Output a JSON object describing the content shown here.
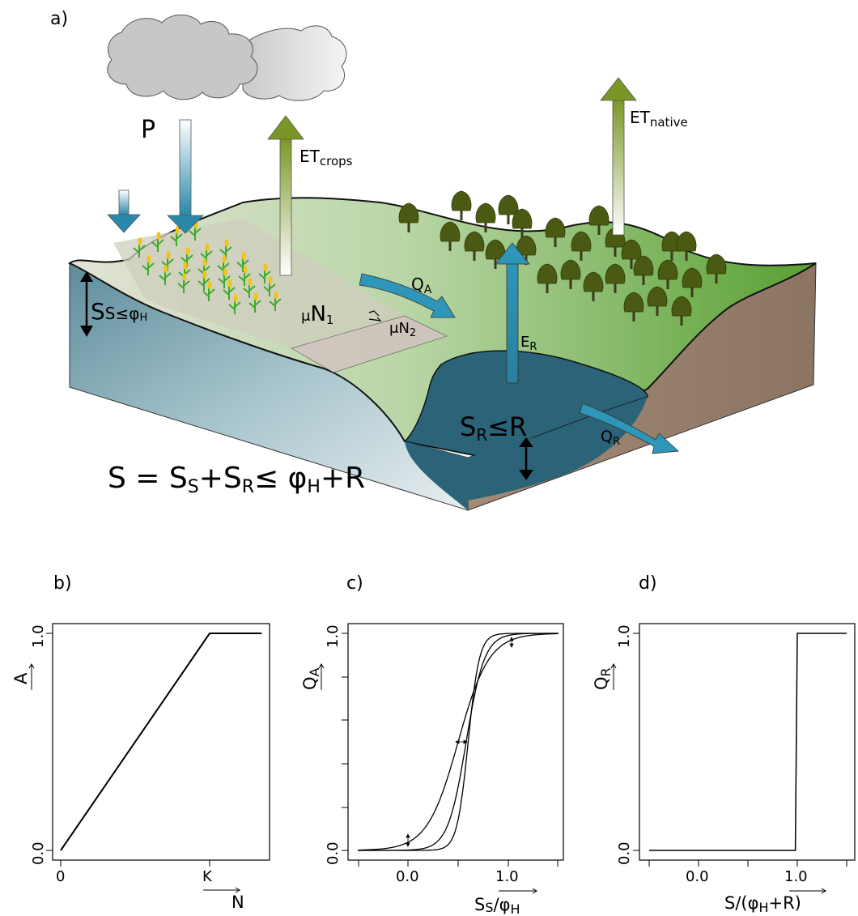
{
  "panel_a": {
    "label": "a)",
    "precip": "P",
    "et_crops_main": "ET",
    "et_crops_sub": "crops",
    "et_native_main": "ET",
    "et_native_sub": "native",
    "qa_main": "Q",
    "qa_sub": "A",
    "qr_main": "Q",
    "qr_sub": "R",
    "er_main": "E",
    "er_sub": "R",
    "mun1_mu": "μ",
    "mun1_main": "N",
    "mun1_sub": "1",
    "mun2_mu": "μ",
    "mun2_main": "N",
    "mun2_sub": "2",
    "ss_main": "S",
    "ss_sub": "S",
    "ss_rel": "≤",
    "ss_phi": "φ",
    "ss_phi_sub": "H",
    "sr_main": "S",
    "sr_sub": "R",
    "sr_rel": "≤R",
    "eq_s": "S = S",
    "eq_s_sub": "S",
    "eq_plus": "+S",
    "eq_r_sub": "R",
    "eq_rel": "≤ φ",
    "eq_h_sub": "H",
    "eq_tail": "+R",
    "colors": {
      "water": "#2b6478",
      "soil": "#8d7866",
      "field": "#c9c5b3",
      "forest": "#5ea236",
      "arrow_blue": "#2d8fb0",
      "arrow_green": "#7f9a2c"
    }
  },
  "chart_data": [
    {
      "type": "line",
      "panel": "b)",
      "xlabel": "N",
      "ylabel": "A",
      "x_ticks": [
        "0",
        "K"
      ],
      "y_ticks": [
        "0.0",
        "1.0"
      ],
      "xlim": [
        -0.02,
        1.35
      ],
      "ylim": [
        -0.03,
        1.03
      ],
      "series": [
        {
          "x": [
            0,
            1.0,
            1.35
          ],
          "y": [
            0,
            1.0,
            1.0
          ]
        }
      ]
    },
    {
      "type": "line",
      "panel": "c)",
      "xlabel_main": "S",
      "xlabel_sub": "S",
      "xlabel_tail": "/φ",
      "xlabel_sub2": "H",
      "ylabel_main": "Q",
      "ylabel_sub": "A",
      "x_ticks": [
        "0.0",
        "1.0"
      ],
      "y_ticks": [
        "0.0",
        "1.0"
      ],
      "xlim": [
        -0.5,
        1.5
      ],
      "ylim": [
        0,
        1
      ],
      "series": [
        {
          "k": 6.5,
          "x0": 0.5
        },
        {
          "k": 11,
          "x0": 0.58
        },
        {
          "k": 18,
          "x0": 0.6
        }
      ]
    },
    {
      "type": "line",
      "panel": "d)",
      "xlabel_pre": "S/(φ",
      "xlabel_sub": "H",
      "xlabel_tail": "+R)",
      "ylabel_main": "Q",
      "ylabel_sub": "R",
      "x_ticks": [
        "0.0",
        "1.0"
      ],
      "y_ticks": [
        "0.0",
        "1.0"
      ],
      "xlim": [
        -0.5,
        1.5
      ],
      "ylim": [
        0,
        1
      ],
      "series": [
        {
          "x": [
            -0.5,
            0.98,
            1.0,
            1.5
          ],
          "y": [
            0,
            0,
            1,
            1
          ]
        }
      ]
    }
  ]
}
